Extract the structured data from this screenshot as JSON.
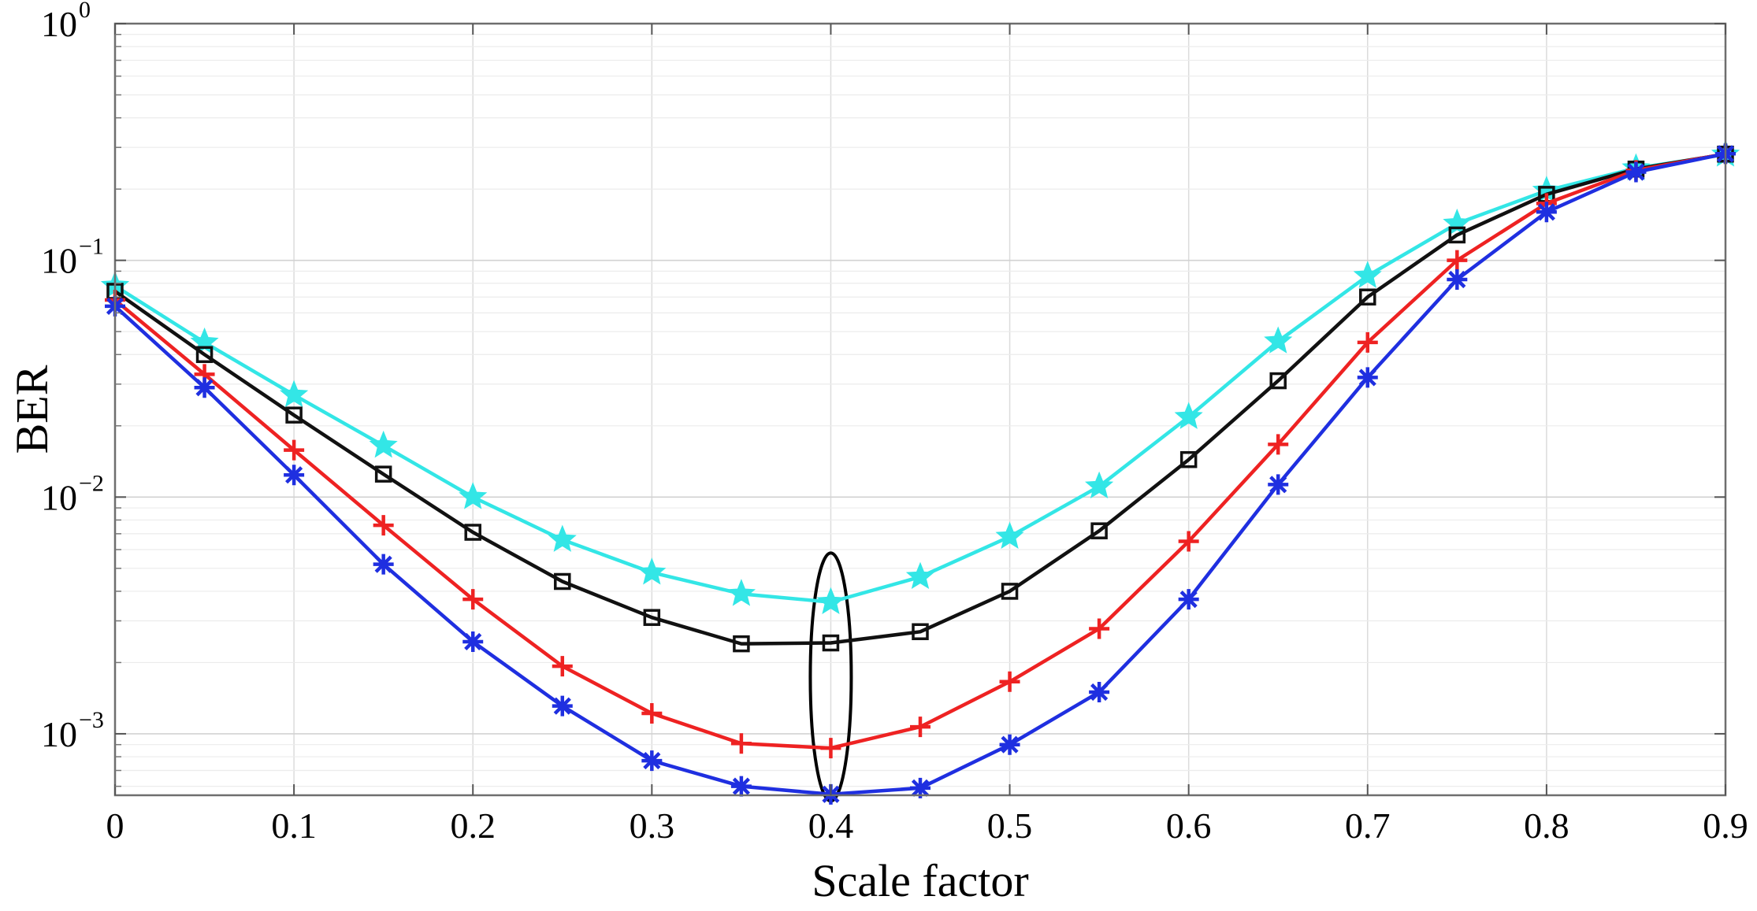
{
  "chart_data": {
    "type": "line",
    "title": "",
    "xlabel": "Scale factor",
    "ylabel": "BER",
    "yscale": "log",
    "xlim": [
      0,
      0.9
    ],
    "ylim": [
      0.00055,
      1
    ],
    "grid": true,
    "x": [
      0,
      0.05,
      0.1,
      0.15,
      0.2,
      0.25,
      0.3,
      0.35,
      0.4,
      0.45,
      0.5,
      0.55,
      0.6,
      0.65,
      0.7,
      0.75,
      0.8,
      0.85,
      0.9
    ],
    "x_ticks": [
      {
        "value": 0,
        "label": "0"
      },
      {
        "value": 0.1,
        "label": "0.1"
      },
      {
        "value": 0.2,
        "label": "0.2"
      },
      {
        "value": 0.3,
        "label": "0.3"
      },
      {
        "value": 0.4,
        "label": "0.4"
      },
      {
        "value": 0.5,
        "label": "0.5"
      },
      {
        "value": 0.6,
        "label": "0.6"
      },
      {
        "value": 0.7,
        "label": "0.7"
      },
      {
        "value": 0.8,
        "label": "0.8"
      },
      {
        "value": 0.9,
        "label": "0.9"
      }
    ],
    "y_ticks": [
      {
        "value": 0.001,
        "base": "10",
        "exponent": "−3"
      },
      {
        "value": 0.01,
        "base": "10",
        "exponent": "−2"
      },
      {
        "value": 0.1,
        "base": "10",
        "exponent": "−1"
      },
      {
        "value": 1,
        "base": "10",
        "exponent": "0"
      }
    ],
    "series": [
      {
        "name": "cyan-star",
        "color": "#33e6e6",
        "marker": "star",
        "values": [
          0.078,
          0.045,
          0.027,
          0.0165,
          0.01,
          0.0066,
          0.0048,
          0.0039,
          0.0036,
          0.0046,
          0.0068,
          0.0111,
          0.0218,
          0.0455,
          0.086,
          0.143,
          0.197,
          0.245,
          0.28
        ]
      },
      {
        "name": "black-square",
        "color": "#111111",
        "marker": "square",
        "values": [
          0.074,
          0.04,
          0.0222,
          0.0125,
          0.0071,
          0.0044,
          0.0031,
          0.0024,
          0.00242,
          0.0027,
          0.004,
          0.0072,
          0.0144,
          0.031,
          0.07,
          0.128,
          0.19,
          0.243,
          0.281
        ]
      },
      {
        "name": "red-plus",
        "color": "#ee2222",
        "marker": "plus",
        "values": [
          0.068,
          0.033,
          0.0158,
          0.0076,
          0.0037,
          0.00193,
          0.00122,
          0.00091,
          0.00087,
          0.00107,
          0.00166,
          0.00278,
          0.0065,
          0.0167,
          0.045,
          0.1,
          0.174,
          0.24,
          0.282
        ]
      },
      {
        "name": "blue-asterisk",
        "color": "#1f2fe0",
        "marker": "asterisk",
        "values": [
          0.064,
          0.029,
          0.0124,
          0.0052,
          0.00245,
          0.00131,
          0.00077,
          0.0006,
          0.000555,
          0.00059,
          0.0009,
          0.0015,
          0.0037,
          0.0113,
          0.032,
          0.083,
          0.16,
          0.236,
          0.282
        ]
      }
    ],
    "annotations": [
      {
        "type": "ellipse",
        "x": 0.4,
        "y_low": 0.00052,
        "y_high": 0.0058,
        "color": "#000000"
      }
    ]
  }
}
